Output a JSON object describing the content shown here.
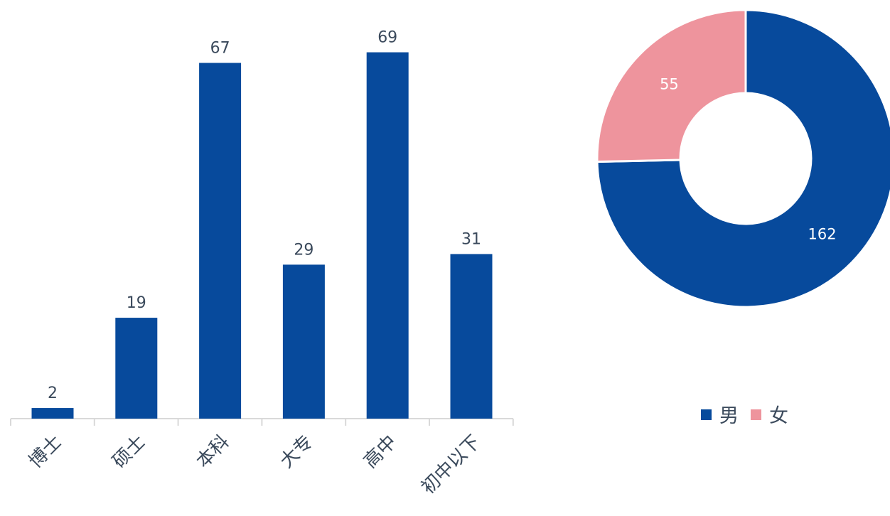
{
  "colors": {
    "primary": "#074a9c",
    "secondary": "#ee949d",
    "axis": "#d9d9d9",
    "text": "#3b4a5c"
  },
  "chart_data": [
    {
      "type": "bar",
      "categories": [
        "博士",
        "硕士",
        "本科",
        "大专",
        "高中",
        "初中以下"
      ],
      "values": [
        2,
        19,
        67,
        29,
        69,
        31
      ],
      "title": "",
      "xlabel": "",
      "ylabel": "",
      "ylim": [
        0,
        75
      ],
      "data_labels": true,
      "grid": false
    },
    {
      "type": "pie",
      "donut": true,
      "labels": [
        "男",
        "女"
      ],
      "values": [
        162,
        55
      ],
      "legend": "bottom",
      "data_labels": true
    }
  ]
}
